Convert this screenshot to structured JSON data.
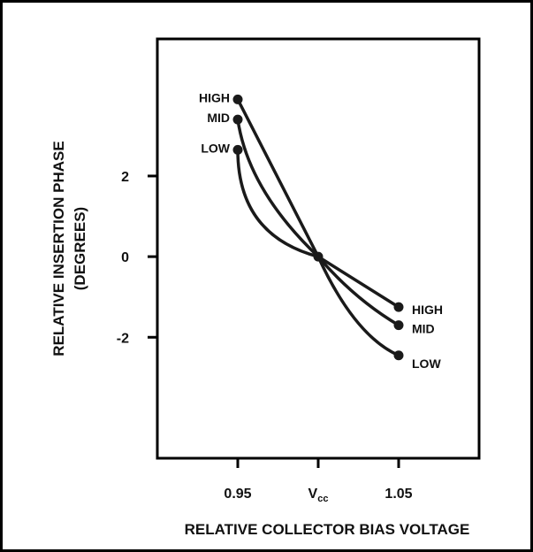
{
  "chart_data": {
    "type": "line",
    "xlabel": "RELATIVE COLLECTOR BIAS VOLTAGE",
    "ylabel": "RELATIVE INSERTION PHASE",
    "ylabel_unit": "(DEGREES)",
    "x_ticks": [
      {
        "value": 0.95,
        "label": "0.95"
      },
      {
        "value": 1.0,
        "label": "V",
        "sub": "cc"
      },
      {
        "value": 1.05,
        "label": "1.05"
      }
    ],
    "y_ticks": [
      {
        "value": 2,
        "label": "2"
      },
      {
        "value": 0,
        "label": "0"
      },
      {
        "value": -2,
        "label": "-2"
      }
    ],
    "xlim": [
      0.9,
      1.1
    ],
    "ylim": [
      -5,
      5.4
    ],
    "grid": false,
    "series": [
      {
        "name": "HIGH",
        "x": [
          0.95,
          1.0,
          1.05
        ],
        "y": [
          3.9,
          0.0,
          -1.25
        ],
        "curvature": 0.0
      },
      {
        "name": "MID",
        "x": [
          0.95,
          1.0,
          1.05
        ],
        "y": [
          3.4,
          0.0,
          -1.7
        ],
        "curvature": 0.12
      },
      {
        "name": "LOW",
        "x": [
          0.95,
          1.0,
          1.05
        ],
        "y": [
          2.65,
          0.0,
          -2.45
        ],
        "curvature": 0.25
      }
    ],
    "colors": {
      "line": "#1a1a1a",
      "frame": "#000000",
      "background": "#ffffff"
    }
  }
}
